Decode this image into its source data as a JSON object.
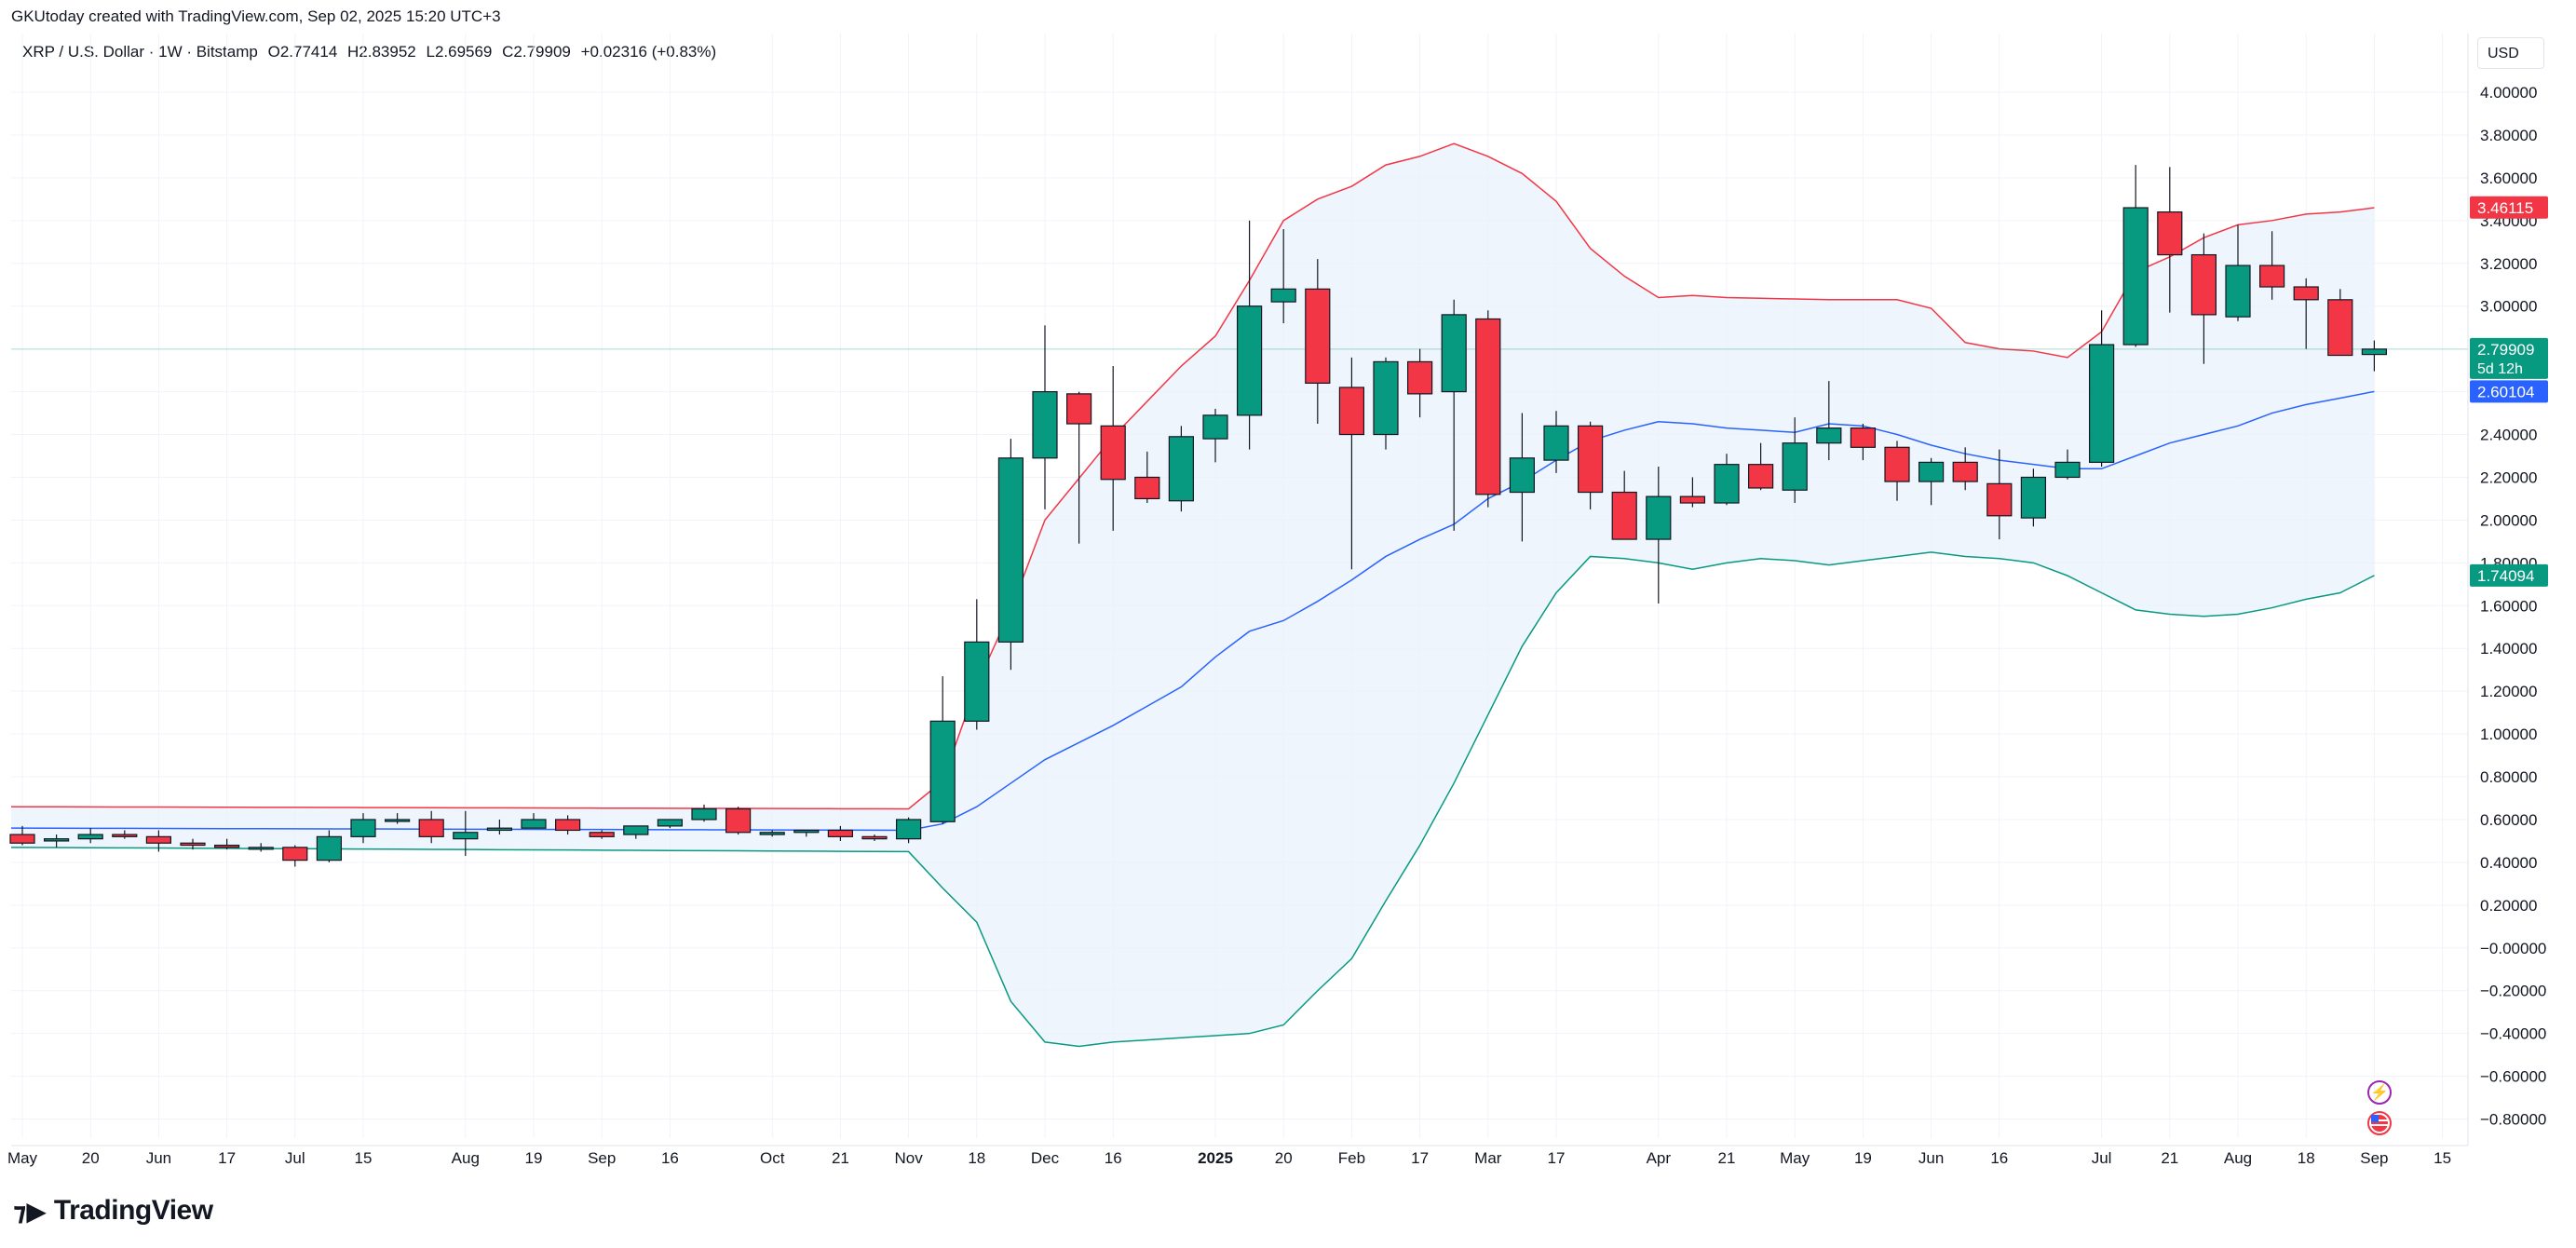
{
  "header": {
    "created_by": "GKUtoday created with TradingView.com, Sep 02, 2025 15:20 UTC+3"
  },
  "symbol": {
    "name": "XRP / U.S. Dollar · 1W · Bitstamp",
    "open": "O2.77414",
    "high": "H2.83952",
    "low": "L2.69569",
    "close": "C2.79909",
    "change": "+0.02316 (+0.83%)"
  },
  "currency": "USD",
  "branding": {
    "wordmark": "TradingView"
  },
  "icons": {
    "flash": "flash-icon",
    "flag": "us-flag-icon"
  },
  "colors": {
    "up": "#089981",
    "down": "#f23645",
    "upper_band": "#f23645",
    "basis": "#2962ff",
    "lower_band": "#089981",
    "band_fill": "#e8f1fb",
    "price_line": "#089981"
  },
  "chart_data": {
    "type": "candlestick",
    "interval": "1W",
    "y_axis": {
      "range": [
        -0.9,
        4.18
      ],
      "ticks": [
        "4.00000",
        "3.80000",
        "3.60000",
        "3.40000",
        "3.20000",
        "3.00000",
        "2.60000",
        "2.40000",
        "2.20000",
        "2.00000",
        "1.80000",
        "1.60000",
        "1.40000",
        "1.20000",
        "1.00000",
        "0.80000",
        "0.60000",
        "0.40000",
        "0.20000",
        "−0.00000",
        "−0.20000",
        "−0.40000",
        "−0.60000",
        "−0.80000"
      ],
      "tick_values": [
        4.0,
        3.8,
        3.6,
        3.4,
        3.2,
        3.0,
        2.6,
        2.4,
        2.2,
        2.0,
        1.8,
        1.6,
        1.4,
        1.2,
        1.0,
        0.8,
        0.6,
        0.4,
        0.2,
        0.0,
        -0.2,
        -0.4,
        -0.6,
        -0.8
      ]
    },
    "x_axis": {
      "ticks": [
        {
          "label": "May",
          "i": 0,
          "bold": false
        },
        {
          "label": "20",
          "i": 2,
          "bold": false
        },
        {
          "label": "Jun",
          "i": 4,
          "bold": false
        },
        {
          "label": "17",
          "i": 6,
          "bold": false
        },
        {
          "label": "Jul",
          "i": 8,
          "bold": false
        },
        {
          "label": "15",
          "i": 10,
          "bold": false
        },
        {
          "label": "Aug",
          "i": 13,
          "bold": false
        },
        {
          "label": "19",
          "i": 15,
          "bold": false
        },
        {
          "label": "Sep",
          "i": 17,
          "bold": false
        },
        {
          "label": "16",
          "i": 19,
          "bold": false
        },
        {
          "label": "Oct",
          "i": 22,
          "bold": false
        },
        {
          "label": "21",
          "i": 24,
          "bold": false
        },
        {
          "label": "Nov",
          "i": 26,
          "bold": false
        },
        {
          "label": "18",
          "i": 28,
          "bold": false
        },
        {
          "label": "Dec",
          "i": 30,
          "bold": false
        },
        {
          "label": "16",
          "i": 32,
          "bold": false
        },
        {
          "label": "2025",
          "i": 35,
          "bold": true
        },
        {
          "label": "20",
          "i": 37,
          "bold": false
        },
        {
          "label": "Feb",
          "i": 39,
          "bold": false
        },
        {
          "label": "17",
          "i": 41,
          "bold": false
        },
        {
          "label": "Mar",
          "i": 43,
          "bold": false
        },
        {
          "label": "17",
          "i": 45,
          "bold": false
        },
        {
          "label": "Apr",
          "i": 48,
          "bold": false
        },
        {
          "label": "21",
          "i": 50,
          "bold": false
        },
        {
          "label": "May",
          "i": 52,
          "bold": false
        },
        {
          "label": "19",
          "i": 54,
          "bold": false
        },
        {
          "label": "Jun",
          "i": 56,
          "bold": false
        },
        {
          "label": "16",
          "i": 58,
          "bold": false
        },
        {
          "label": "Jul",
          "i": 61,
          "bold": false
        },
        {
          "label": "21",
          "i": 63,
          "bold": false
        },
        {
          "label": "Aug",
          "i": 65,
          "bold": false
        },
        {
          "label": "18",
          "i": 67,
          "bold": false
        },
        {
          "label": "Sep",
          "i": 69,
          "bold": false
        },
        {
          "label": "15",
          "i": 71,
          "bold": false
        }
      ]
    },
    "candles": [
      [
        0.53,
        0.57,
        0.48,
        0.49
      ],
      [
        0.5,
        0.53,
        0.47,
        0.51
      ],
      [
        0.51,
        0.56,
        0.49,
        0.53
      ],
      [
        0.53,
        0.55,
        0.51,
        0.52
      ],
      [
        0.52,
        0.55,
        0.45,
        0.49
      ],
      [
        0.49,
        0.51,
        0.46,
        0.48
      ],
      [
        0.48,
        0.51,
        0.46,
        0.47
      ],
      [
        0.47,
        0.49,
        0.45,
        0.47
      ],
      [
        0.47,
        0.48,
        0.38,
        0.41
      ],
      [
        0.41,
        0.55,
        0.4,
        0.52
      ],
      [
        0.52,
        0.63,
        0.49,
        0.6
      ],
      [
        0.6,
        0.63,
        0.58,
        0.6
      ],
      [
        0.6,
        0.64,
        0.49,
        0.52
      ],
      [
        0.51,
        0.64,
        0.43,
        0.54
      ],
      [
        0.55,
        0.6,
        0.53,
        0.56
      ],
      [
        0.56,
        0.63,
        0.56,
        0.6
      ],
      [
        0.6,
        0.62,
        0.53,
        0.55
      ],
      [
        0.54,
        0.55,
        0.51,
        0.52
      ],
      [
        0.53,
        0.57,
        0.51,
        0.57
      ],
      [
        0.57,
        0.6,
        0.56,
        0.6
      ],
      [
        0.6,
        0.67,
        0.59,
        0.65
      ],
      [
        0.65,
        0.66,
        0.53,
        0.54
      ],
      [
        0.53,
        0.55,
        0.52,
        0.54
      ],
      [
        0.54,
        0.55,
        0.52,
        0.55
      ],
      [
        0.55,
        0.57,
        0.5,
        0.52
      ],
      [
        0.52,
        0.53,
        0.5,
        0.51
      ],
      [
        0.51,
        0.61,
        0.49,
        0.6
      ],
      [
        0.59,
        1.27,
        0.58,
        1.06
      ],
      [
        1.06,
        1.63,
        1.02,
        1.43
      ],
      [
        1.43,
        2.38,
        1.3,
        2.29
      ],
      [
        2.29,
        2.91,
        2.05,
        2.6
      ],
      [
        2.59,
        2.6,
        1.89,
        2.45
      ],
      [
        2.44,
        2.72,
        1.95,
        2.19
      ],
      [
        2.2,
        2.32,
        2.08,
        2.1
      ],
      [
        2.09,
        2.44,
        2.04,
        2.39
      ],
      [
        2.38,
        2.52,
        2.27,
        2.49
      ],
      [
        2.49,
        3.4,
        2.33,
        3.0
      ],
      [
        3.02,
        3.36,
        2.92,
        3.08
      ],
      [
        3.08,
        3.22,
        2.45,
        2.64
      ],
      [
        2.62,
        2.76,
        1.77,
        2.4
      ],
      [
        2.4,
        2.76,
        2.33,
        2.74
      ],
      [
        2.74,
        2.8,
        2.48,
        2.59
      ],
      [
        2.6,
        3.03,
        1.95,
        2.96
      ],
      [
        2.94,
        2.98,
        2.06,
        2.12
      ],
      [
        2.13,
        2.5,
        1.9,
        2.29
      ],
      [
        2.28,
        2.51,
        2.22,
        2.44
      ],
      [
        2.44,
        2.46,
        2.05,
        2.13
      ],
      [
        2.13,
        2.23,
        1.91,
        1.91
      ],
      [
        1.91,
        2.25,
        1.61,
        2.11
      ],
      [
        2.11,
        2.2,
        2.06,
        2.08
      ],
      [
        2.08,
        2.31,
        2.07,
        2.26
      ],
      [
        2.26,
        2.36,
        2.14,
        2.15
      ],
      [
        2.14,
        2.48,
        2.08,
        2.36
      ],
      [
        2.36,
        2.65,
        2.28,
        2.43
      ],
      [
        2.43,
        2.45,
        2.28,
        2.34
      ],
      [
        2.34,
        2.37,
        2.09,
        2.18
      ],
      [
        2.18,
        2.29,
        2.07,
        2.27
      ],
      [
        2.27,
        2.34,
        2.14,
        2.18
      ],
      [
        2.17,
        2.33,
        1.91,
        2.02
      ],
      [
        2.01,
        2.24,
        1.97,
        2.2
      ],
      [
        2.2,
        2.33,
        2.19,
        2.27
      ],
      [
        2.27,
        2.98,
        2.25,
        2.82
      ],
      [
        2.82,
        3.66,
        2.81,
        3.46
      ],
      [
        3.44,
        3.65,
        2.97,
        3.24
      ],
      [
        3.24,
        3.34,
        2.73,
        2.96
      ],
      [
        2.95,
        3.38,
        2.93,
        3.19
      ],
      [
        3.19,
        3.35,
        3.03,
        3.09
      ],
      [
        3.09,
        3.13,
        2.8,
        3.03
      ],
      [
        3.03,
        3.08,
        2.77,
        2.77
      ],
      [
        2.77414,
        2.83952,
        2.69569,
        2.79909
      ]
    ],
    "bollinger": {
      "upper_knots": [
        [
          0,
          0.66
        ],
        [
          26,
          0.65
        ],
        [
          27,
          0.78
        ],
        [
          28,
          1.23
        ],
        [
          29,
          1.58
        ],
        [
          30,
          2.0
        ],
        [
          32,
          2.39
        ],
        [
          34,
          2.72
        ],
        [
          35,
          2.86
        ],
        [
          36,
          3.12
        ],
        [
          37,
          3.4
        ],
        [
          38,
          3.5
        ],
        [
          39,
          3.56
        ],
        [
          40,
          3.66
        ],
        [
          41,
          3.7
        ],
        [
          42,
          3.76
        ],
        [
          43,
          3.7
        ],
        [
          44,
          3.62
        ],
        [
          45,
          3.49
        ],
        [
          46,
          3.27
        ],
        [
          47,
          3.14
        ],
        [
          48,
          3.04
        ],
        [
          49,
          3.05
        ],
        [
          50,
          3.04
        ],
        [
          53,
          3.03
        ],
        [
          55,
          3.03
        ],
        [
          56,
          2.99
        ],
        [
          57,
          2.83
        ],
        [
          58,
          2.8
        ],
        [
          59,
          2.79
        ],
        [
          60,
          2.76
        ],
        [
          61,
          2.88
        ],
        [
          62,
          3.16
        ],
        [
          63,
          3.23
        ],
        [
          64,
          3.32
        ],
        [
          65,
          3.38
        ],
        [
          66,
          3.4
        ],
        [
          67,
          3.43
        ],
        [
          68,
          3.44
        ],
        [
          69,
          3.46
        ]
      ],
      "basis_knots": [
        [
          0,
          0.56
        ],
        [
          26,
          0.55
        ],
        [
          27,
          0.58
        ],
        [
          28,
          0.66
        ],
        [
          30,
          0.88
        ],
        [
          31,
          0.96
        ],
        [
          32,
          1.04
        ],
        [
          33,
          1.13
        ],
        [
          34,
          1.22
        ],
        [
          35,
          1.36
        ],
        [
          36,
          1.48
        ],
        [
          37,
          1.53
        ],
        [
          38,
          1.62
        ],
        [
          39,
          1.72
        ],
        [
          40,
          1.83
        ],
        [
          41,
          1.91
        ],
        [
          42,
          1.98
        ],
        [
          43,
          2.1
        ],
        [
          44,
          2.18
        ],
        [
          45,
          2.28
        ],
        [
          46,
          2.37
        ],
        [
          47,
          2.42
        ],
        [
          48,
          2.46
        ],
        [
          49,
          2.45
        ],
        [
          50,
          2.43
        ],
        [
          51,
          2.42
        ],
        [
          52,
          2.41
        ],
        [
          53,
          2.45
        ],
        [
          54,
          2.44
        ],
        [
          55,
          2.4
        ],
        [
          56,
          2.35
        ],
        [
          57,
          2.31
        ],
        [
          58,
          2.28
        ],
        [
          59,
          2.26
        ],
        [
          60,
          2.24
        ],
        [
          61,
          2.24
        ],
        [
          62,
          2.3
        ],
        [
          63,
          2.36
        ],
        [
          64,
          2.4
        ],
        [
          65,
          2.44
        ],
        [
          66,
          2.5
        ],
        [
          67,
          2.54
        ],
        [
          68,
          2.57
        ],
        [
          69,
          2.60104
        ]
      ],
      "lower_knots": [
        [
          0,
          0.47
        ],
        [
          26,
          0.45
        ],
        [
          27,
          0.28
        ],
        [
          28,
          0.12
        ],
        [
          29,
          -0.25
        ],
        [
          30,
          -0.44
        ],
        [
          31,
          -0.46
        ],
        [
          32,
          -0.44
        ],
        [
          33,
          -0.43
        ],
        [
          34,
          -0.42
        ],
        [
          35,
          -0.41
        ],
        [
          36,
          -0.4
        ],
        [
          37,
          -0.36
        ],
        [
          38,
          -0.2
        ],
        [
          39,
          -0.05
        ],
        [
          40,
          0.22
        ],
        [
          41,
          0.48
        ],
        [
          42,
          0.77
        ],
        [
          43,
          1.09
        ],
        [
          44,
          1.41
        ],
        [
          45,
          1.66
        ],
        [
          46,
          1.83
        ],
        [
          47,
          1.82
        ],
        [
          48,
          1.8
        ],
        [
          49,
          1.77
        ],
        [
          50,
          1.8
        ],
        [
          51,
          1.82
        ],
        [
          52,
          1.81
        ],
        [
          53,
          1.79
        ],
        [
          54,
          1.81
        ],
        [
          55,
          1.83
        ],
        [
          56,
          1.85
        ],
        [
          57,
          1.83
        ],
        [
          58,
          1.82
        ],
        [
          59,
          1.8
        ],
        [
          60,
          1.74
        ],
        [
          61,
          1.66
        ],
        [
          62,
          1.58
        ],
        [
          63,
          1.56
        ],
        [
          64,
          1.55
        ],
        [
          65,
          1.56
        ],
        [
          66,
          1.59
        ],
        [
          67,
          1.63
        ],
        [
          68,
          1.66
        ],
        [
          69,
          1.74094
        ]
      ]
    },
    "labels": {
      "upper": {
        "value": 3.46115,
        "text": "3.46115"
      },
      "price": {
        "value": 2.79909,
        "text": "2.79909",
        "countdown": "5d 12h"
      },
      "basis": {
        "value": 2.60104,
        "text": "2.60104"
      },
      "lower": {
        "value": 1.74094,
        "text": "1.74094"
      }
    },
    "grid": true
  }
}
